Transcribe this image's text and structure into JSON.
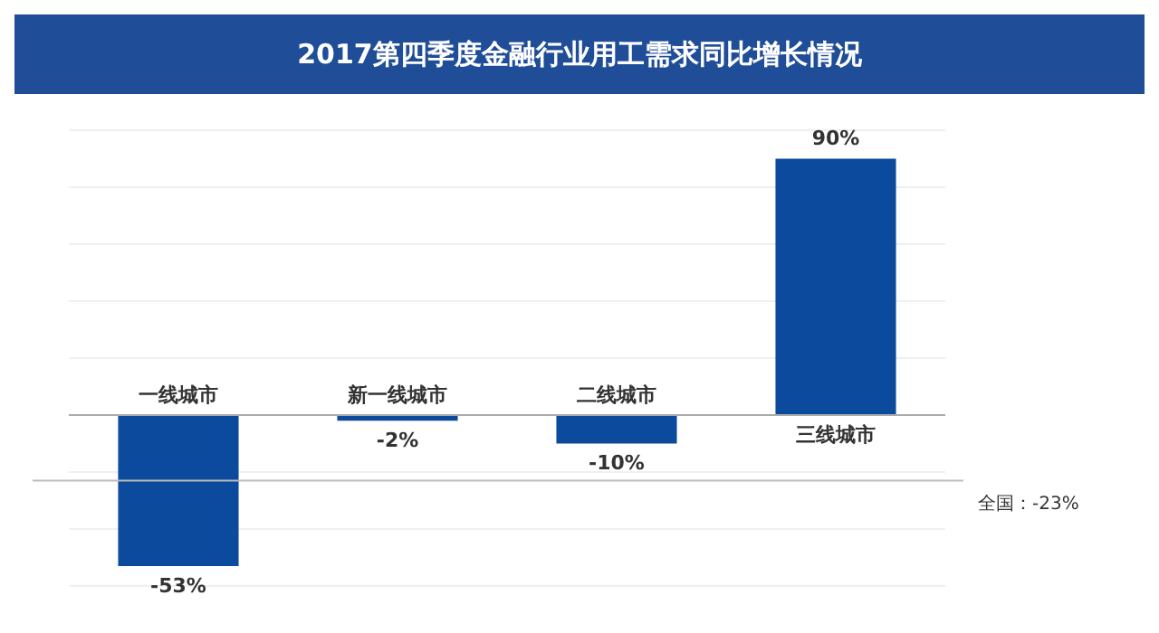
{
  "chart_data": {
    "type": "bar",
    "title": "2017第四季度金融行业用工需求同比增长情况",
    "categories": [
      "一线城市",
      "新一线城市",
      "二线城市",
      "三线城市"
    ],
    "values": [
      -53,
      -2,
      -10,
      90
    ],
    "value_labels": [
      "-53%",
      "-2%",
      "-10%",
      "90%"
    ],
    "color": "#0b4a9c",
    "ylim": [
      -60,
      100
    ],
    "yticks": [
      {
        "value": -60,
        "label": null
      },
      {
        "value": -40,
        "label": null
      },
      {
        "value": -20,
        "label": null
      },
      {
        "value": 0,
        "label": null
      },
      {
        "value": 20,
        "label": null
      },
      {
        "value": 40,
        "label": null
      },
      {
        "value": 60,
        "label": null
      },
      {
        "value": 80,
        "label": null
      },
      {
        "value": 100,
        "label": null
      }
    ],
    "tick_labels": "x",
    "grid": "y",
    "legend": false,
    "ref_lines": [
      {
        "axis": "y",
        "value": -23,
        "label": "全国：-23%",
        "color": "#bbbbbb"
      }
    ]
  }
}
